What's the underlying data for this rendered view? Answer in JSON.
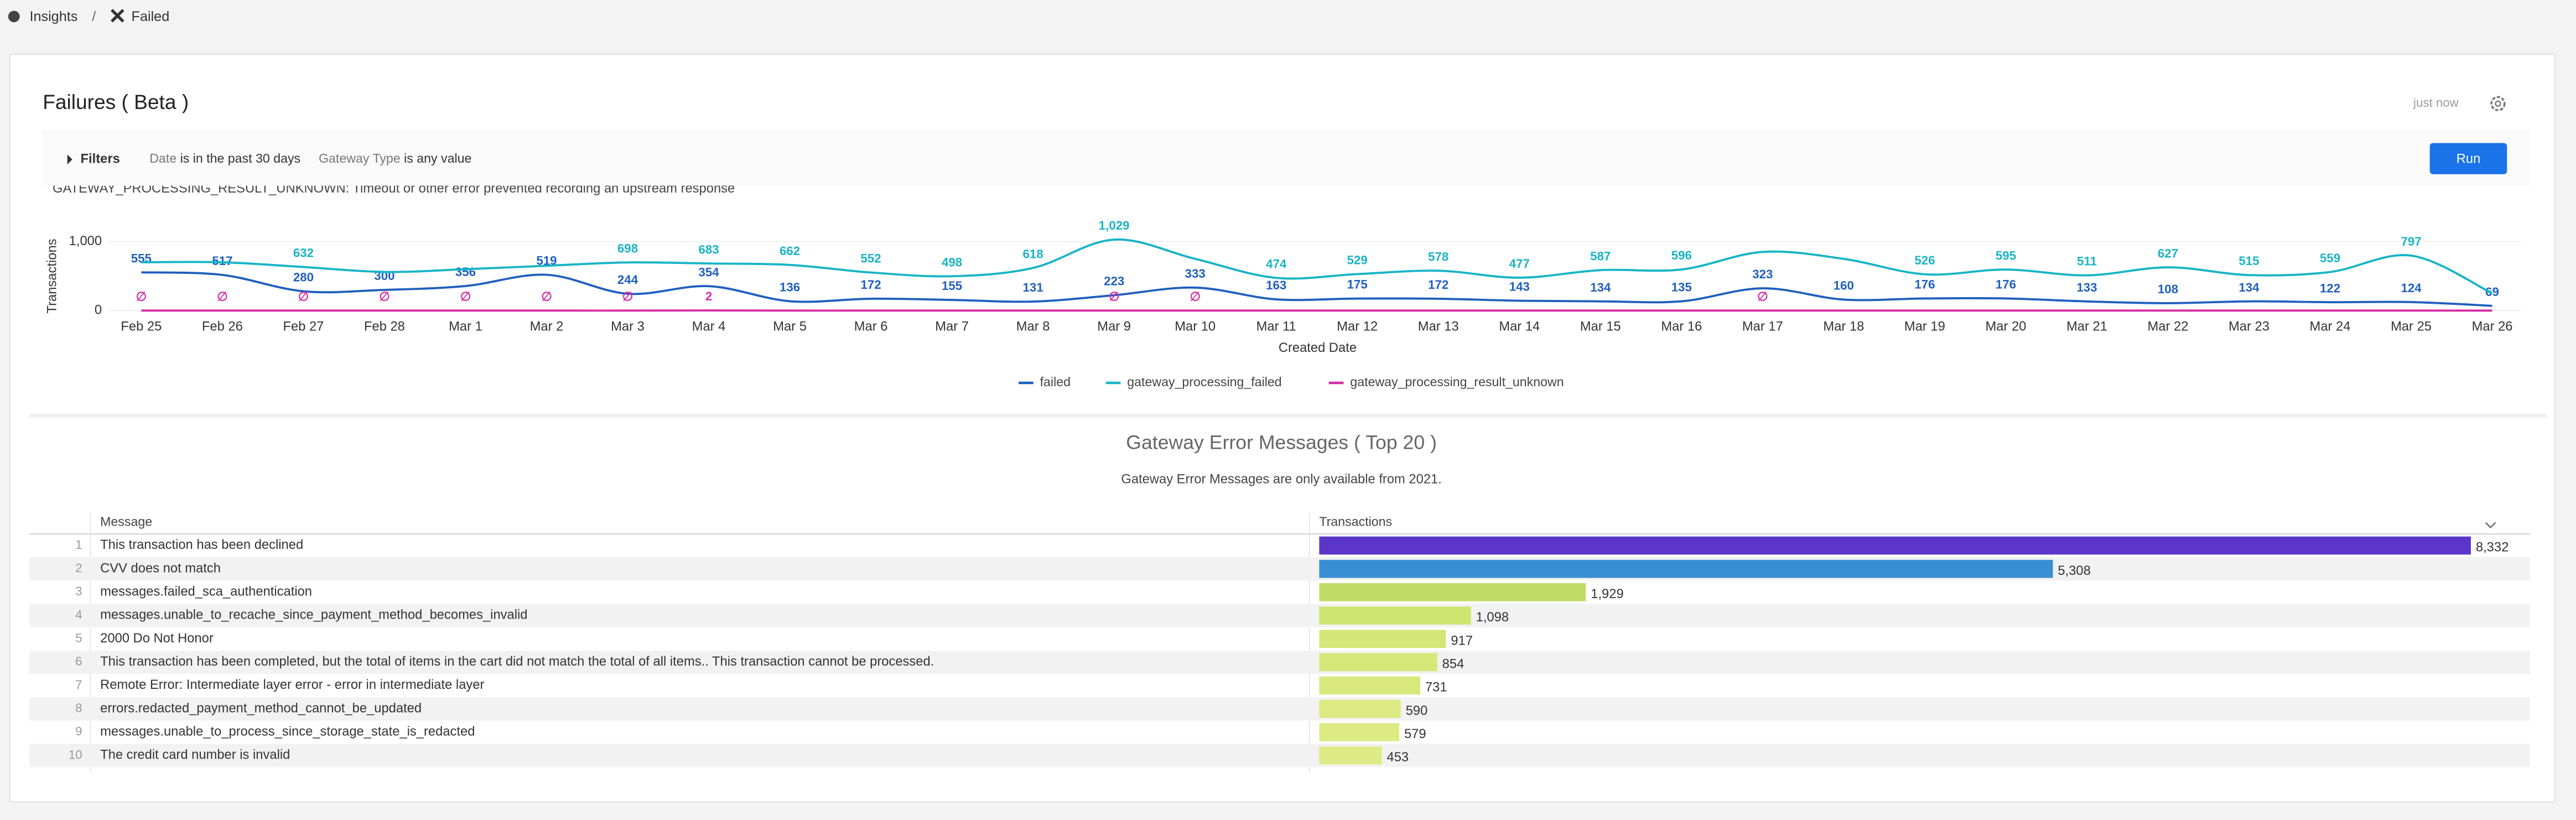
{
  "breadcrumb": [
    "Insights",
    "Failed"
  ],
  "header": {
    "title": "Failures ( Beta )",
    "updated": "just now"
  },
  "filters": {
    "label": "Filters",
    "items": [
      {
        "field": "Date",
        "condition": "is in the past 30 days"
      },
      {
        "field": "Gateway Type",
        "condition": "is any value"
      }
    ]
  },
  "run_button": "Run",
  "chart_data": [
    {
      "type": "line",
      "annotation": "GATEWAY_PROCESSING_RESULT_UNKNOWN: Timeout or other error prevented recording an upstream response",
      "y_label": "Transactions",
      "x_label": "Created Date",
      "categories": [
        "Feb 25",
        "Feb 26",
        "Feb 27",
        "Feb 28",
        "Mar 1",
        "Mar 2",
        "Mar 3",
        "Mar 4",
        "Mar 5",
        "Mar 6",
        "Mar 7",
        "Mar 8",
        "Mar 9",
        "Mar 10",
        "Mar 11",
        "Mar 12",
        "Mar 13",
        "Mar 14",
        "Mar 15",
        "Mar 16",
        "Mar 17",
        "Mar 18",
        "Mar 19",
        "Mar 20",
        "Mar 21",
        "Mar 22",
        "Mar 23",
        "Mar 24",
        "Mar 25",
        "Mar 26"
      ],
      "ylim": [
        0,
        1100
      ],
      "yticks": [
        0,
        {
          "value": 1000,
          "label": "1,000"
        }
      ],
      "series": [
        {
          "name": "failed",
          "color": "#1f5fbf",
          "values": [
            555,
            517,
            280,
            300,
            356,
            519,
            244,
            354,
            136,
            172,
            155,
            131,
            223,
            333,
            163,
            175,
            172,
            143,
            134,
            135,
            323,
            160,
            176,
            176,
            133,
            108,
            134,
            122,
            124,
            69
          ]
        },
        {
          "name": "gateway_processing_failed",
          "color": "#18b4c6",
          "values": [
            700,
            700,
            632,
            560,
            600,
            650,
            698,
            683,
            662,
            552,
            498,
            618,
            1029,
            750,
            474,
            529,
            578,
            477,
            587,
            596,
            850,
            750,
            526,
            595,
            511,
            627,
            515,
            559,
            797,
            250
          ],
          "value_labels": [
            null,
            null,
            "632",
            null,
            null,
            null,
            "698",
            "683",
            "662",
            "552",
            "498",
            "618",
            "1,029",
            null,
            "474",
            "529",
            "578",
            "477",
            "587",
            "596",
            null,
            null,
            "526",
            "595",
            "511",
            "627",
            "515",
            "559",
            "797",
            null
          ]
        },
        {
          "name": "gateway_processing_result_unknown",
          "color": "#d62ca5",
          "values": [
            0,
            0,
            0,
            0,
            0,
            0,
            0,
            2,
            0,
            0,
            0,
            0,
            0,
            0,
            0,
            0,
            0,
            0,
            0,
            0,
            0,
            0,
            0,
            0,
            0,
            0,
            0,
            0,
            0,
            0
          ],
          "value_labels": [
            "∅",
            "∅",
            "∅",
            "∅",
            "∅",
            "∅",
            "∅",
            "2",
            null,
            null,
            null,
            null,
            "∅",
            "∅",
            null,
            null,
            null,
            null,
            null,
            null,
            "∅",
            null,
            null,
            null,
            null,
            null,
            null,
            null,
            null,
            null
          ]
        }
      ]
    },
    {
      "type": "bar",
      "orientation": "horizontal",
      "title": "Gateway Error Messages ( Top 20 )",
      "subtitle": "Gateway Error Messages are only available from 2021.",
      "columns": [
        "Message",
        "Transactions"
      ],
      "row_numbers": [
        1,
        2,
        3,
        4,
        5,
        6,
        7,
        8,
        9,
        10
      ],
      "categories": [
        "This transaction has been declined",
        "CVV does not match",
        "messages.failed_sca_authentication",
        "messages.unable_to_recache_since_payment_method_becomes_invalid",
        "2000 Do Not Honor",
        "This transaction has been completed, but the total of items in the cart did not match the total of all items.. This transaction cannot be processed.",
        "Remote Error: Intermediate layer error - error in intermediate layer",
        "errors.redacted_payment_method_cannot_be_updated",
        "messages.unable_to_process_since_storage_state_is_redacted",
        "The credit card number is invalid"
      ],
      "values": [
        8332,
        5308,
        1929,
        1098,
        917,
        854,
        731,
        590,
        579,
        453
      ],
      "value_labels": [
        "8,332",
        "5,308",
        "1,929",
        "1,098",
        "917",
        "854",
        "731",
        "590",
        "579",
        "453"
      ],
      "colors": [
        "#5b36c9",
        "#3a8fd3",
        "#c2db66",
        "#d0e472",
        "#d4e677",
        "#d6e77a",
        "#d8e87d",
        "#dbea82",
        "#dcea84",
        "#ddeb86"
      ]
    }
  ]
}
